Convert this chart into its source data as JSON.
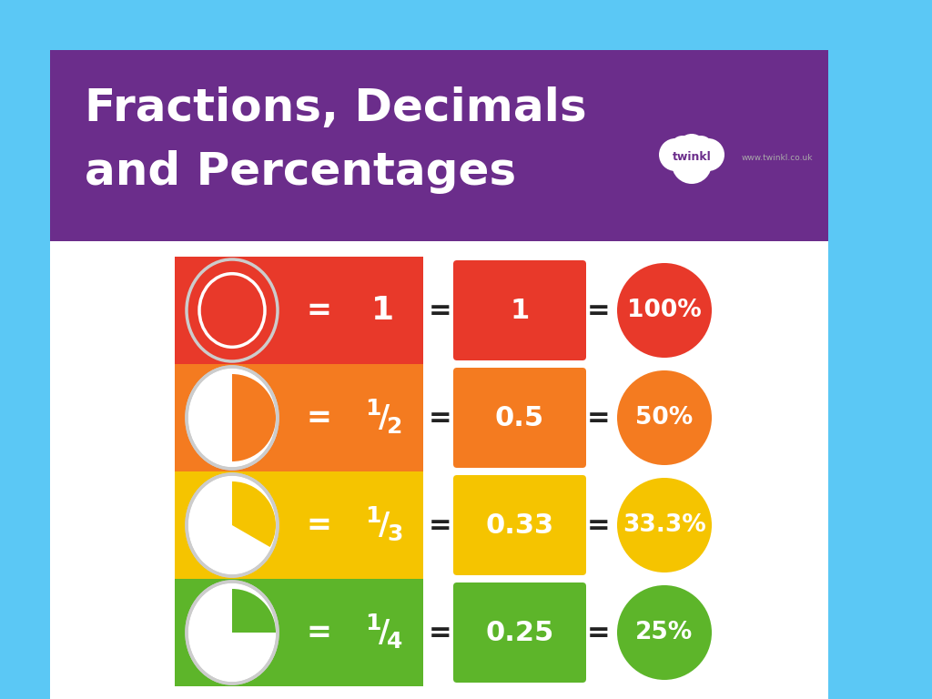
{
  "title_line1": "Fractions, Decimals",
  "title_line2": "and Percentages",
  "title_color": "#ffffff",
  "header_bg": "#6B2D8B",
  "bg_color": "#5BC8F5",
  "rows": [
    {
      "fraction_display": "1",
      "fraction_super": "",
      "fraction_sub": "",
      "decimal": "1",
      "percent": "100%",
      "row_color": "#E8392A",
      "filled": 1.0
    },
    {
      "fraction_display": "1/2",
      "fraction_super": "1",
      "fraction_sub": "2",
      "decimal": "0.5",
      "percent": "50%",
      "row_color": "#F47B20",
      "filled": 0.5
    },
    {
      "fraction_display": "1/3",
      "fraction_super": "1",
      "fraction_sub": "3",
      "decimal": "0.33",
      "percent": "33.3%",
      "row_color": "#F5C400",
      "filled": 0.3333
    },
    {
      "fraction_display": "1/4",
      "fraction_super": "1",
      "fraction_sub": "4",
      "decimal": "0.25",
      "percent": "25%",
      "row_color": "#5DB52A",
      "filled": 0.25
    }
  ]
}
